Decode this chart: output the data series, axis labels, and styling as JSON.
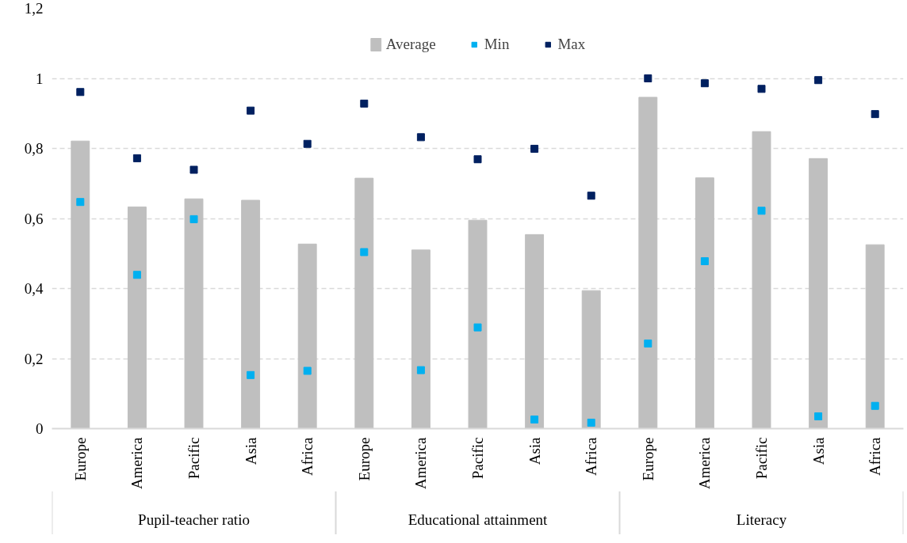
{
  "chart_data": {
    "type": "bar",
    "categories": [
      "Europe",
      "America",
      "Pacific",
      "Asia",
      "Africa",
      "Europe",
      "America",
      "Pacific",
      "Asia",
      "Africa",
      "Europe",
      "America",
      "Pacific",
      "Asia",
      "Africa"
    ],
    "annotations": [
      "Pupil-teacher ratio",
      "Educational attainment",
      "Literacy"
    ],
    "series": [
      {
        "name": "Average",
        "type": "bar",
        "color": "#bfbfbf",
        "values": [
          0.821,
          0.633,
          0.656,
          0.652,
          0.527,
          0.715,
          0.51,
          0.595,
          0.554,
          0.394,
          0.946,
          0.716,
          0.848,
          0.771,
          0.525
        ]
      },
      {
        "name": "Min",
        "type": "scatter",
        "marker": "square",
        "color": "#00b0f0",
        "values": [
          0.647,
          0.439,
          0.598,
          0.153,
          0.165,
          0.504,
          0.167,
          0.289,
          0.026,
          0.017,
          0.243,
          0.478,
          0.622,
          0.035,
          0.065
        ]
      },
      {
        "name": "Max",
        "type": "scatter",
        "marker": "square",
        "color": "#002060",
        "values": [
          0.961,
          0.772,
          0.739,
          0.908,
          0.813,
          0.928,
          0.832,
          0.769,
          0.799,
          0.665,
          1.0,
          0.986,
          0.97,
          0.995,
          0.898
        ]
      }
    ],
    "ylim": [
      0,
      1.2
    ],
    "yticks": [
      0,
      {
        "value": 0.2,
        "label": "0,2"
      },
      {
        "value": 0.4,
        "label": "0,4"
      },
      {
        "value": 0.6,
        "label": "0,6"
      },
      {
        "value": 0.8,
        "label": "0,8"
      },
      1,
      {
        "value": 1.2,
        "label": "1,2"
      }
    ],
    "grid": "y",
    "legend": "top"
  }
}
